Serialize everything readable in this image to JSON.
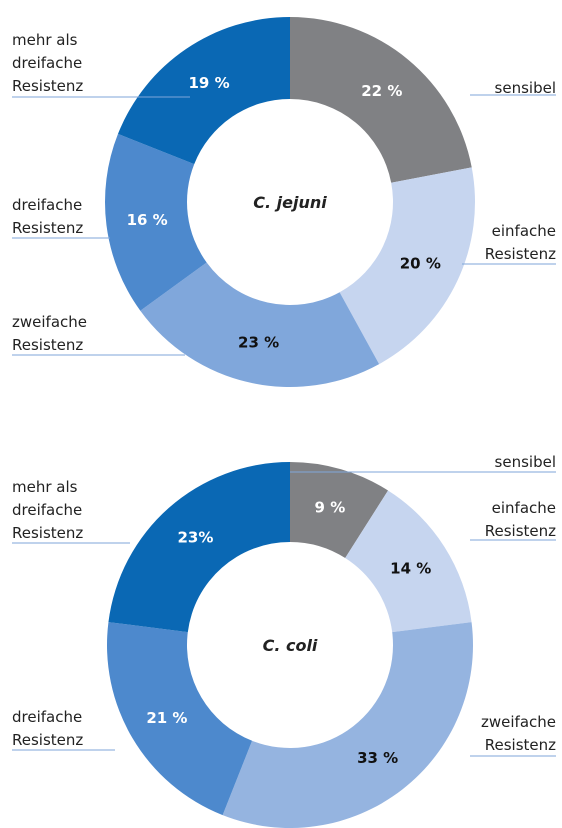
{
  "chart_data": [
    {
      "type": "pie",
      "title": "C. jejuni",
      "categories": [
        [
          "sensibel"
        ],
        [
          "einfache",
          "Resistenz"
        ],
        [
          "zweifache",
          "Resistenz"
        ],
        [
          "dreifache",
          "Resistenz"
        ],
        [
          "mehr als",
          "dreifache",
          "Resistenz"
        ]
      ],
      "values": [
        22,
        20,
        23,
        16,
        19
      ],
      "value_labels": [
        "22 %",
        "20 %",
        "23 %",
        "16 %",
        "19 %"
      ],
      "colors": [
        "#808184",
        "#c6d5ef",
        "#80a7db",
        "#4d89cd",
        "#0a68b4"
      ],
      "value_label_colors": [
        "#ffffff",
        "#111111",
        "#111111",
        "#ffffff",
        "#ffffff"
      ]
    },
    {
      "type": "pie",
      "title": "C. coli",
      "categories": [
        [
          "sensibel"
        ],
        [
          "einfache",
          "Resistenz"
        ],
        [
          "zweifache",
          "Resistenz"
        ],
        [
          "dreifache",
          "Resistenz"
        ],
        [
          "mehr als",
          "dreifache",
          "Resistenz"
        ]
      ],
      "values": [
        9,
        14,
        33,
        21,
        23
      ],
      "value_labels": [
        "9 %",
        "14 %",
        "33 %",
        "21 %",
        "23%"
      ],
      "colors": [
        "#808184",
        "#c6d5ef",
        "#95b4e0",
        "#4d89cd",
        "#0a68b4"
      ],
      "value_label_colors": [
        "#ffffff",
        "#111111",
        "#111111",
        "#ffffff",
        "#ffffff"
      ]
    }
  ]
}
